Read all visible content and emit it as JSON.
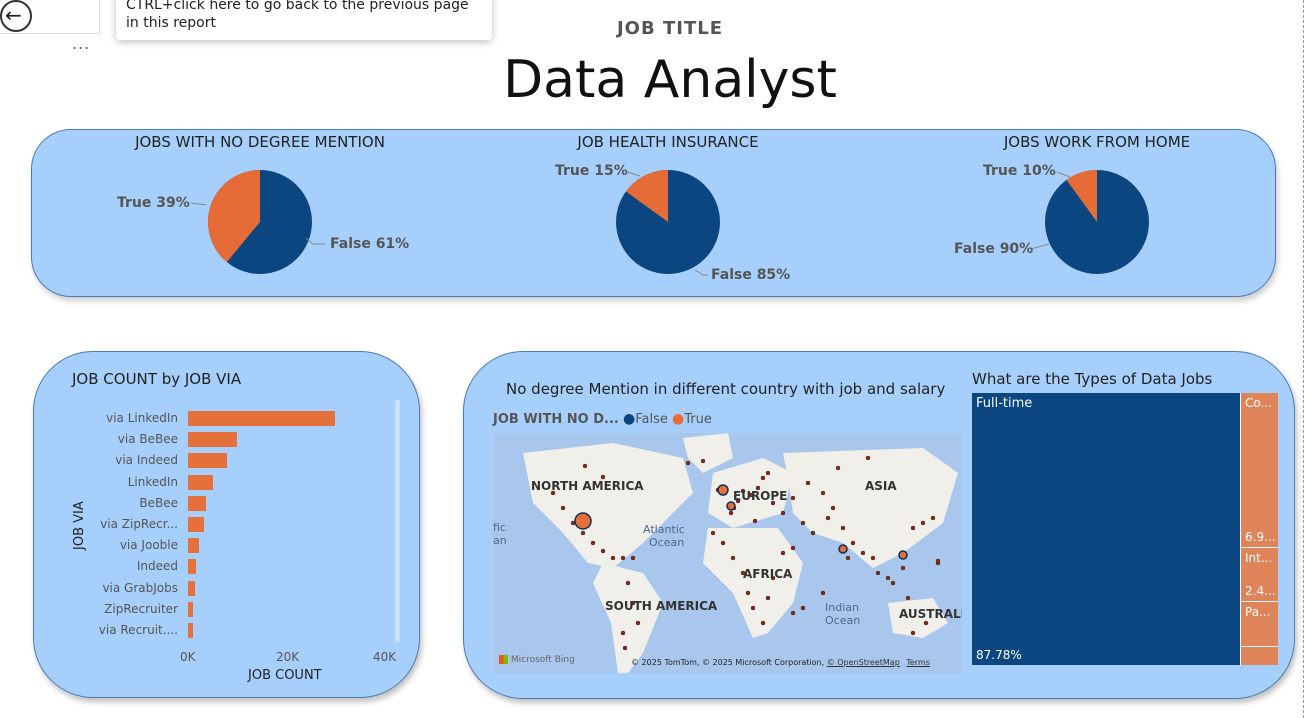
{
  "header": {
    "back_tooltip": "CTRL+click here to go back to the previous page in this report",
    "more_label": "...",
    "job_title_label": "JOB TITLE",
    "job_title_value": "Data Analyst"
  },
  "pies": [
    {
      "title": "JOBS WITH NO DEGREE MENTION",
      "true_label": "True 39%",
      "false_label": "False 61%",
      "true_pct": 39
    },
    {
      "title": "JOB HEALTH INSURANCE",
      "true_label": "True 15%",
      "false_label": "False 85%",
      "true_pct": 15
    },
    {
      "title": "JOBS WORK FROM HOME",
      "true_label": "True 10%",
      "false_label": "False 90%",
      "true_pct": 10
    }
  ],
  "colors": {
    "false": "#0b4680",
    "true": "#e66c37",
    "card": "#a6d0fb"
  },
  "bar_chart": {
    "title": "JOB COUNT by JOB VIA",
    "ylabel": "JOB VIA",
    "xlabel": "JOB COUNT",
    "ticks": [
      "0K",
      "20K",
      "40K"
    ],
    "categories": [
      "via LinkedIn",
      "via BeBee",
      "via Indeed",
      "LinkedIn",
      "BeBee",
      "via ZipRecr...",
      "via Jooble",
      "Indeed",
      "via GrabJobs",
      "ZipRecruiter",
      "via Recruit...."
    ]
  },
  "chart_data": {
    "type": "bar",
    "title": "JOB COUNT by JOB VIA",
    "xlabel": "JOB COUNT",
    "ylabel": "JOB VIA",
    "categories": [
      "via LinkedIn",
      "via BeBee",
      "via Indeed",
      "LinkedIn",
      "BeBee",
      "via ZipRecr...",
      "via Jooble",
      "Indeed",
      "via GrabJobs",
      "ZipRecruiter",
      "via Recruit...."
    ],
    "values": [
      30000,
      10000,
      8000,
      5000,
      3700,
      3300,
      2300,
      1600,
      1400,
      1100,
      1000
    ],
    "xlim": [
      0,
      40000
    ]
  },
  "map": {
    "title": "No degree Mention in different country with job and salary",
    "legend_title": "JOB WITH NO D...",
    "legend_false": "False",
    "legend_true": "True",
    "labels": {
      "north_america": "NORTH AMERICA",
      "europe": "EUROPE",
      "asia": "ASIA",
      "africa": "AFRICA",
      "south_america": "SOUTH AMERICA",
      "australia": "AUSTRALIA",
      "atlantic": "Atlantic",
      "ocean": "Ocean",
      "indian": "Indian",
      "pacific_fic": "fic",
      "pacific_an": "an"
    },
    "bing": "Microsoft Bing",
    "copyright": "© 2025 TomTom, © 2025 Microsoft Corporation,",
    "osm": "© OpenStreetMap",
    "terms": "Terms"
  },
  "treemap": {
    "title": "What are the Types of Data Jobs",
    "tiles": [
      {
        "label": "Full-time",
        "value": "87.78%"
      },
      {
        "label": "Co...",
        "value": "6.9..."
      },
      {
        "label": "Int...",
        "value": "2.4..."
      },
      {
        "label": "Pa...",
        "value": ""
      }
    ]
  }
}
